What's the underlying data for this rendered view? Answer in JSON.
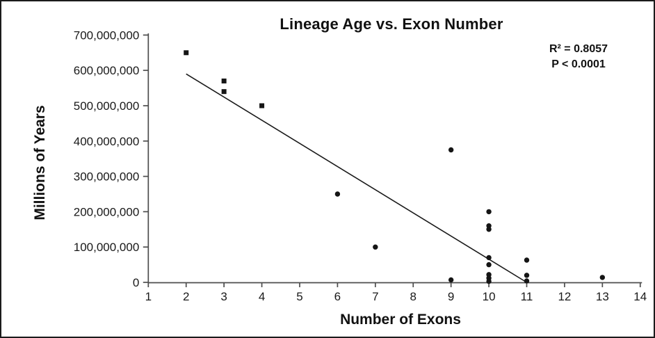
{
  "chart_data": {
    "type": "scatter",
    "title": "Lineage Age vs. Exon Number",
    "xlabel": "Number of Exons",
    "ylabel": "Millions of Years",
    "annotations": [
      "R² = 0.8057",
      "P < 0.0001"
    ],
    "xlim": [
      1,
      14
    ],
    "ylim": [
      0,
      700000000
    ],
    "grid": false,
    "legend_position": "none",
    "x_tick_values": [
      1,
      2,
      3,
      4,
      5,
      6,
      7,
      8,
      9,
      10,
      11,
      12,
      13,
      14
    ],
    "x_tick_labels": [
      "1",
      "2",
      "3",
      "4",
      "5",
      "6",
      "7",
      "8",
      "9",
      "10",
      "11",
      "12",
      "13",
      "14"
    ],
    "y_tick_values": [
      0,
      100000000,
      200000000,
      300000000,
      400000000,
      500000000,
      600000000,
      700000000
    ],
    "y_tick_labels": [
      "0",
      "100,000,000",
      "200,000,000",
      "300,000,000",
      "400,000,000",
      "500,000,000",
      "600,000,000",
      "700,000,000"
    ],
    "series": [
      {
        "name": "square-markers",
        "marker": "square",
        "points": [
          [
            2,
            650000000
          ],
          [
            3,
            570000000
          ],
          [
            3,
            540000000
          ],
          [
            4,
            500000000
          ]
        ]
      },
      {
        "name": "circle-markers",
        "marker": "circle",
        "points": [
          [
            6,
            250000000
          ],
          [
            7,
            100000000
          ],
          [
            9,
            375000000
          ],
          [
            9,
            7000000
          ],
          [
            10,
            200000000
          ],
          [
            10,
            160000000
          ],
          [
            10,
            150000000
          ],
          [
            10,
            70000000
          ],
          [
            10,
            50000000
          ],
          [
            10,
            22000000
          ],
          [
            10,
            12000000
          ],
          [
            10,
            3000000
          ],
          [
            11,
            63000000
          ],
          [
            11,
            20000000
          ],
          [
            11,
            4000000
          ],
          [
            13,
            14000000
          ]
        ]
      }
    ],
    "trendline": {
      "x1": 2,
      "y1": 590000000,
      "x2": 11,
      "y2": 0
    },
    "colors": {
      "marker": "#151515",
      "trendline": "#1a1a1a",
      "axis": "#4d4d4d",
      "text": "#191919",
      "background": "#ffffff",
      "border": "#1b1b1b"
    }
  }
}
